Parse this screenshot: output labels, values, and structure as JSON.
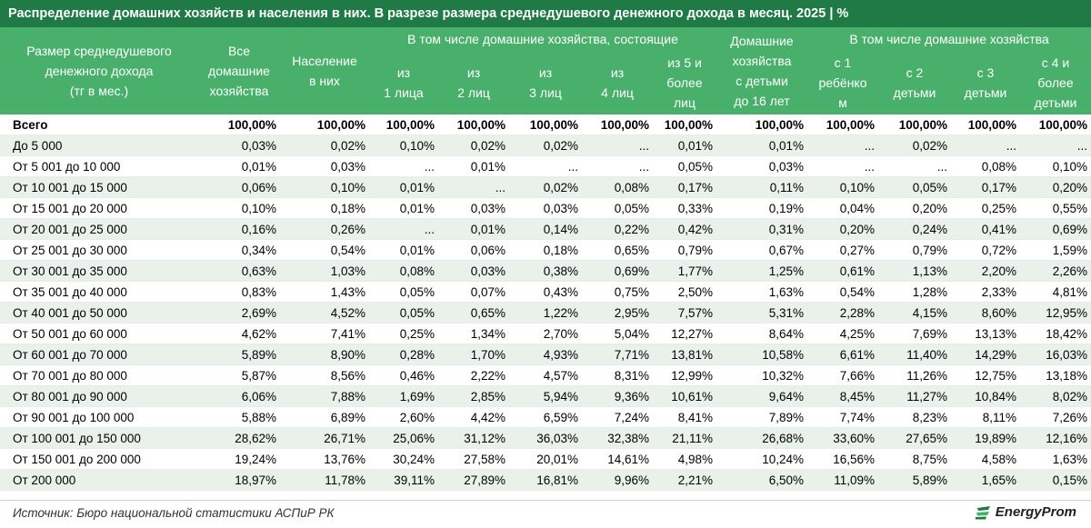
{
  "title": "Распределение домашних хозяйств и населения в них. В разрезе размера среднедушевого денежного дохода в месяц. 2025 | %",
  "headers": {
    "col_label": "Размер среднедушевого\nденежного дохода\n(тг в мес.)",
    "all_households": "Все\nдомашние\nхозяйства",
    "population": "Население\nв них",
    "group_size": "В том числе домашние хозяйства, состоящие",
    "size_1": "из\n1 лица",
    "size_2": "из\n2 лиц",
    "size_3": "из\n3 лиц",
    "size_4": "из\n4 лиц",
    "size_5": "из 5 и\nболее\nлиц",
    "with_children": "Домашние\nхозяйства\nс детьми\nдо 16 лет",
    "group_children": "В том числе домашние хозяйства",
    "child_1": "с 1\nребёнко\nм",
    "child_2": "с 2\nдетьми",
    "child_3": "с 3\nдетьми",
    "child_4": "с 4 и\nболее\nдетьми"
  },
  "rows": [
    {
      "label": "Всего",
      "values": [
        "100,00%",
        "100,00%",
        "100,00%",
        "100,00%",
        "100,00%",
        "100,00%",
        "100,00%",
        "100,00%",
        "100,00%",
        "100,00%",
        "100,00%",
        "100,00%"
      ]
    },
    {
      "label": "До 5 000",
      "values": [
        "0,03%",
        "0,02%",
        "0,10%",
        "0,02%",
        "0,02%",
        "...",
        "0,01%",
        "0,01%",
        "...",
        "0,02%",
        "...",
        "..."
      ]
    },
    {
      "label": "От 5 001 до 10 000",
      "values": [
        "0,01%",
        "0,03%",
        "...",
        "0,01%",
        "...",
        "...",
        "0,05%",
        "0,03%",
        "...",
        "...",
        "0,08%",
        "0,10%"
      ]
    },
    {
      "label": "От 10 001 до 15 000",
      "values": [
        "0,06%",
        "0,10%",
        "0,01%",
        "...",
        "0,02%",
        "0,08%",
        "0,17%",
        "0,11%",
        "0,10%",
        "0,05%",
        "0,17%",
        "0,20%"
      ]
    },
    {
      "label": "От 15 001 до 20 000",
      "values": [
        "0,10%",
        "0,18%",
        "0,01%",
        "0,03%",
        "0,03%",
        "0,05%",
        "0,33%",
        "0,19%",
        "0,04%",
        "0,20%",
        "0,25%",
        "0,55%"
      ]
    },
    {
      "label": "От 20 001 до 25 000",
      "values": [
        "0,16%",
        "0,26%",
        "...",
        "0,01%",
        "0,14%",
        "0,22%",
        "0,42%",
        "0,31%",
        "0,20%",
        "0,24%",
        "0,41%",
        "0,69%"
      ]
    },
    {
      "label": "От 25 001 до 30 000",
      "values": [
        "0,34%",
        "0,54%",
        "0,01%",
        "0,06%",
        "0,18%",
        "0,65%",
        "0,79%",
        "0,67%",
        "0,27%",
        "0,79%",
        "0,72%",
        "1,59%"
      ]
    },
    {
      "label": "От 30 001 до 35 000",
      "values": [
        "0,63%",
        "1,03%",
        "0,08%",
        "0,03%",
        "0,38%",
        "0,69%",
        "1,77%",
        "1,25%",
        "0,61%",
        "1,13%",
        "2,20%",
        "2,26%"
      ]
    },
    {
      "label": "От 35 001 до 40 000",
      "values": [
        "0,83%",
        "1,43%",
        "0,05%",
        "0,07%",
        "0,43%",
        "0,75%",
        "2,50%",
        "1,63%",
        "0,54%",
        "1,28%",
        "2,33%",
        "4,81%"
      ]
    },
    {
      "label": "От 40 001 до 50 000",
      "values": [
        "2,69%",
        "4,52%",
        "0,05%",
        "0,65%",
        "1,22%",
        "2,95%",
        "7,57%",
        "5,31%",
        "2,28%",
        "4,15%",
        "8,60%",
        "12,95%"
      ]
    },
    {
      "label": "От 50 001 до 60 000",
      "values": [
        "4,62%",
        "7,41%",
        "0,25%",
        "1,34%",
        "2,70%",
        "5,04%",
        "12,27%",
        "8,64%",
        "4,25%",
        "7,69%",
        "13,13%",
        "18,42%"
      ]
    },
    {
      "label": "От 60 001 до 70 000",
      "values": [
        "5,89%",
        "8,90%",
        "0,28%",
        "1,70%",
        "4,93%",
        "7,71%",
        "13,81%",
        "10,58%",
        "6,61%",
        "11,40%",
        "14,29%",
        "16,03%"
      ]
    },
    {
      "label": "От 70 001 до 80 000",
      "values": [
        "5,87%",
        "8,56%",
        "0,46%",
        "2,22%",
        "4,57%",
        "8,31%",
        "12,99%",
        "10,32%",
        "7,66%",
        "11,26%",
        "12,75%",
        "13,18%"
      ]
    },
    {
      "label": "От 80 001 до 90 000",
      "values": [
        "6,06%",
        "7,88%",
        "1,69%",
        "2,85%",
        "5,94%",
        "9,36%",
        "10,61%",
        "9,64%",
        "8,45%",
        "11,27%",
        "10,84%",
        "8,02%"
      ]
    },
    {
      "label": "От 90 001 до 100 000",
      "values": [
        "5,88%",
        "6,89%",
        "2,60%",
        "4,42%",
        "6,59%",
        "7,24%",
        "8,41%",
        "7,89%",
        "7,74%",
        "8,23%",
        "8,11%",
        "7,26%"
      ]
    },
    {
      "label": "От 100 001 до 150 000",
      "values": [
        "28,62%",
        "26,71%",
        "25,06%",
        "31,12%",
        "36,03%",
        "32,38%",
        "21,11%",
        "26,68%",
        "33,60%",
        "27,65%",
        "19,89%",
        "12,16%"
      ]
    },
    {
      "label": "От 150 001 до 200 000",
      "values": [
        "19,24%",
        "13,76%",
        "30,24%",
        "27,58%",
        "20,01%",
        "14,61%",
        "4,98%",
        "10,24%",
        "16,56%",
        "8,75%",
        "4,58%",
        "1,63%"
      ]
    },
    {
      "label": "От 200 000",
      "values": [
        "18,97%",
        "11,78%",
        "39,11%",
        "27,89%",
        "16,81%",
        "9,96%",
        "2,21%",
        "6,50%",
        "11,09%",
        "5,89%",
        "1,65%",
        "0,15%"
      ]
    }
  ],
  "footer": {
    "source": "Источник: Бюро национальной статистики АСПиР РК",
    "logo_text": "EnergyProm"
  },
  "colors": {
    "title_bg": "#1f7a46",
    "header_bg": "#48b06a",
    "alt_row_bg": "#e9f1ea"
  }
}
